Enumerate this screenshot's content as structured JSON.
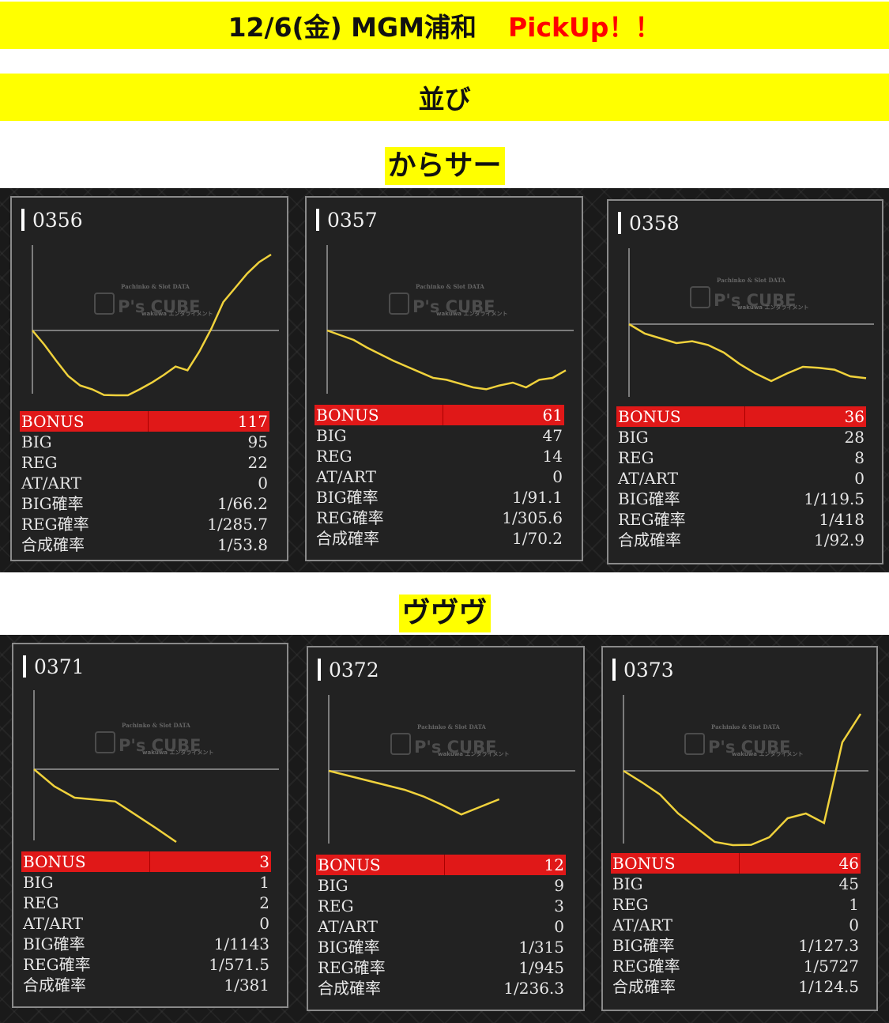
{
  "header": {
    "title": "12/6(金) MGM浦和",
    "pickup": "PickUp！！"
  },
  "subheader": {
    "title": "並び"
  },
  "watermark": {
    "top": "Pachinko & Slot DATA",
    "main": "P's CUBE",
    "bottom": "wakuwa エンタライメント"
  },
  "stat_labels": [
    "BONUS",
    "BIG",
    "REG",
    "AT/ART",
    "BIG確率",
    "REG確率",
    "合成確率"
  ],
  "colors": {
    "banner": "#ffff00",
    "pickup": "#ff0000",
    "bonus_bar": "#e01818",
    "graph_line": "#f0d23c"
  },
  "groups": [
    {
      "label": "からサー",
      "machines": [
        {
          "number": "0356",
          "bonus": "117",
          "big": "95",
          "reg": "22",
          "at_art": "0",
          "big_rate": "1/66.2",
          "reg_rate": "1/285.7",
          "combined_rate": "1/53.8",
          "trend": [
            0,
            -0.15,
            -0.32,
            -0.48,
            -0.58,
            -0.62,
            -0.68,
            -0.74,
            -0.72,
            -0.62,
            -0.55,
            -0.47,
            -0.38,
            -0.42,
            -0.22,
            0.02,
            0.3,
            0.45,
            0.6,
            0.72,
            0.8
          ]
        },
        {
          "number": "0357",
          "bonus": "61",
          "big": "47",
          "reg": "14",
          "at_art": "0",
          "big_rate": "1/91.1",
          "reg_rate": "1/305.6",
          "combined_rate": "1/70.2",
          "trend": [
            0,
            -0.05,
            -0.1,
            -0.18,
            -0.25,
            -0.32,
            -0.38,
            -0.44,
            -0.5,
            -0.52,
            -0.56,
            -0.6,
            -0.62,
            -0.58,
            -0.55,
            -0.6,
            -0.52,
            -0.5,
            -0.42
          ]
        },
        {
          "number": "0358",
          "bonus": "36",
          "big": "28",
          "reg": "8",
          "at_art": "0",
          "big_rate": "1/119.5",
          "reg_rate": "1/418",
          "combined_rate": "1/92.9",
          "trend": [
            0,
            -0.1,
            -0.15,
            -0.2,
            -0.18,
            -0.22,
            -0.3,
            -0.42,
            -0.52,
            -0.6,
            -0.52,
            -0.45,
            -0.46,
            -0.48,
            -0.55,
            -0.57
          ]
        }
      ]
    },
    {
      "label": "ヴヴヴ",
      "machines": [
        {
          "number": "0371",
          "bonus": "3",
          "big": "1",
          "reg": "2",
          "at_art": "0",
          "big_rate": "1/1143",
          "reg_rate": "1/571.5",
          "combined_rate": "1/381",
          "trend": [
            0,
            -0.18,
            -0.3,
            -0.32,
            -0.34,
            -0.48,
            -0.62,
            -0.78
          ]
        },
        {
          "number": "0372",
          "bonus": "12",
          "big": "9",
          "reg": "3",
          "at_art": "0",
          "big_rate": "1/315",
          "reg_rate": "1/945",
          "combined_rate": "1/236.3",
          "trend": [
            0,
            -0.05,
            -0.1,
            -0.15,
            -0.2,
            -0.27,
            -0.36,
            -0.46,
            -0.38,
            -0.3
          ]
        },
        {
          "number": "0373",
          "bonus": "46",
          "big": "45",
          "reg": "1",
          "at_art": "0",
          "big_rate": "1/127.3",
          "reg_rate": "1/5727",
          "combined_rate": "1/124.5",
          "trend": [
            0,
            -0.12,
            -0.25,
            -0.45,
            -0.6,
            -0.75,
            -0.85,
            -0.78,
            -0.7,
            -0.5,
            -0.45,
            -0.55,
            0.3,
            0.6
          ]
        }
      ]
    }
  ]
}
